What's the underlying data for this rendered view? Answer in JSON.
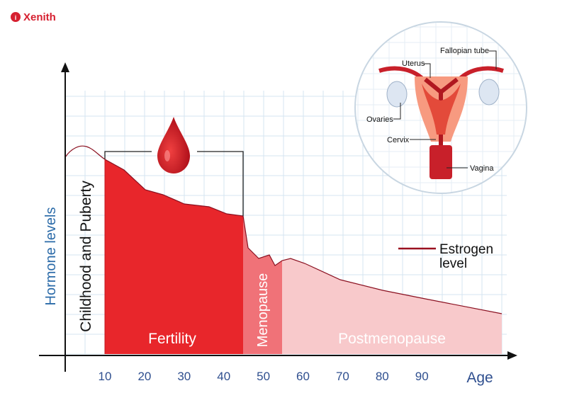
{
  "logo": {
    "brand": "Xenith"
  },
  "axes": {
    "y_label": "Hormone levels",
    "x_label": "Age",
    "x_ticks": [
      "10",
      "20",
      "30",
      "40",
      "50",
      "60",
      "70",
      "80",
      "90"
    ]
  },
  "phases": [
    "Childhood and Puberty",
    "Fertility",
    "Menopause",
    "Postmenopause"
  ],
  "legend": {
    "lines": [
      "Estrogen",
      "level"
    ]
  },
  "anatomy": {
    "labels": [
      "Uterus",
      "Fallopian tube",
      "Ovaries",
      "Cervix",
      "Vagina"
    ]
  }
}
